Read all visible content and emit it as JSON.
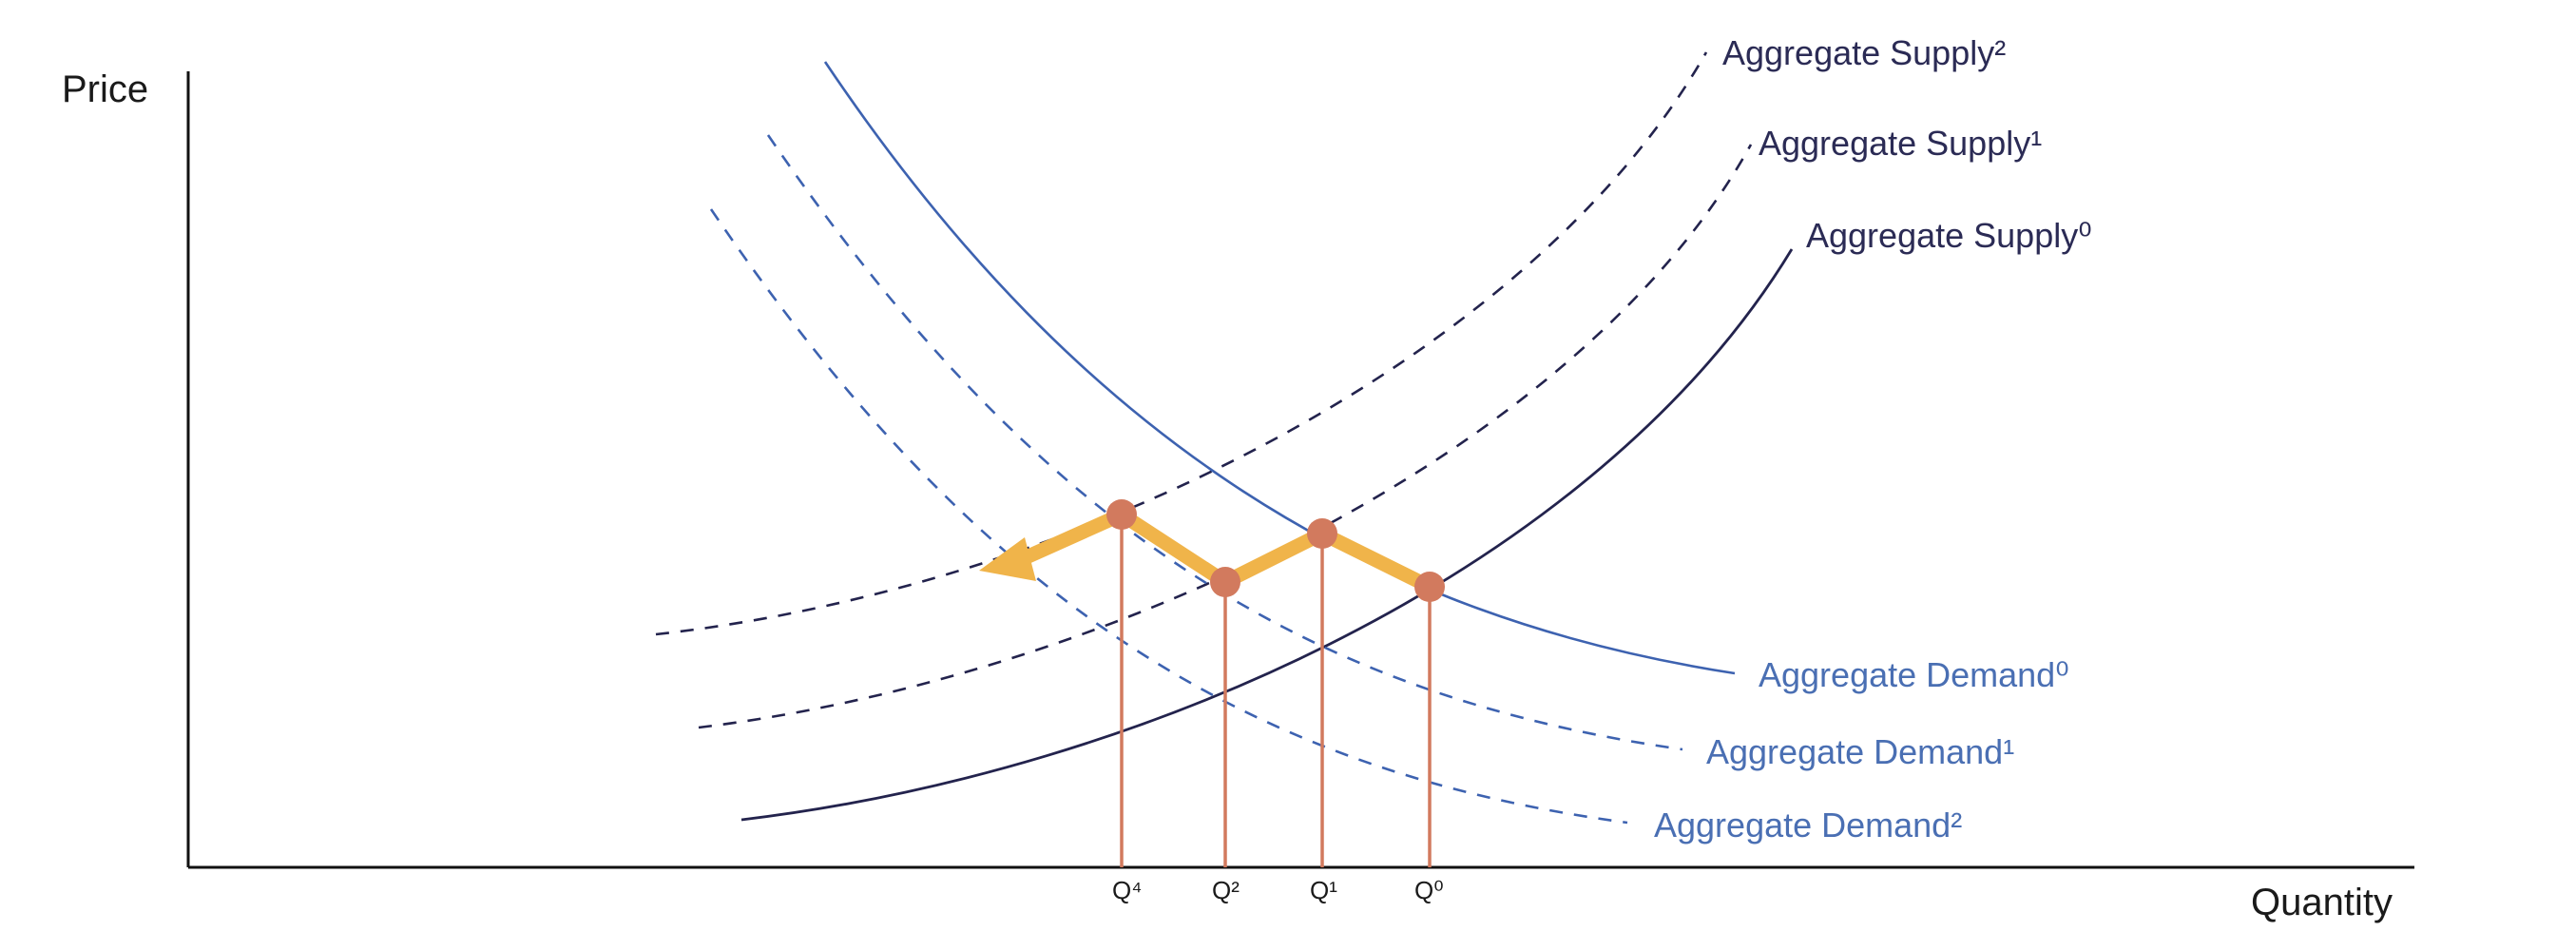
{
  "axes": {
    "y_label": "Price",
    "x_label": "Quantity"
  },
  "curves": {
    "supply_2": "Aggregate Supply²",
    "supply_1": "Aggregate Supply¹",
    "supply_0": "Aggregate Supply⁰",
    "demand_0": "Aggregate Demand⁰",
    "demand_1": "Aggregate Demand¹",
    "demand_2": "Aggregate Demand²"
  },
  "quantities": {
    "q4": "Q⁴",
    "q2": "Q²",
    "q1": "Q¹",
    "q0": "Q⁰"
  },
  "colors": {
    "axis": "#111111",
    "supply": "#23234d",
    "demand": "#3d62b0",
    "equilibrium_point": "#d27a5e",
    "drop_line": "#d27a5e",
    "path_arrow": "#f0b44a"
  }
}
